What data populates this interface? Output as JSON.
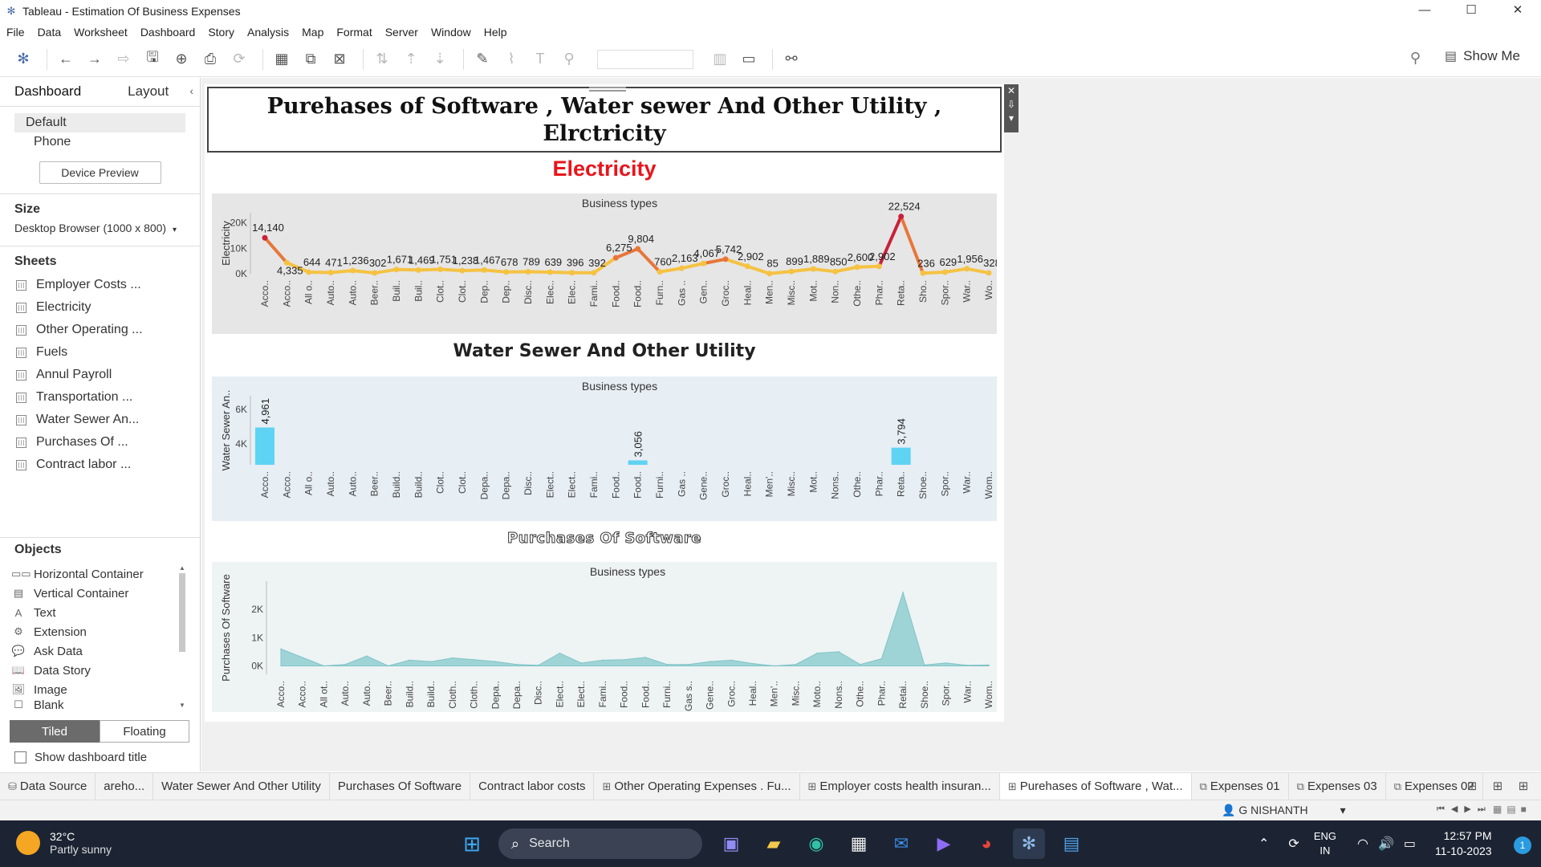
{
  "window": {
    "title": "Tableau - Estimation Of Business Expenses",
    "minimize": "—",
    "maximize": "☐",
    "close": "✕"
  },
  "menu": [
    "File",
    "Data",
    "Worksheet",
    "Dashboard",
    "Story",
    "Analysis",
    "Map",
    "Format",
    "Server",
    "Window",
    "Help"
  ],
  "toolbar": {
    "show_me": "Show Me"
  },
  "left_pane": {
    "tabs": [
      "Dashboard",
      "Layout"
    ],
    "collapse_glyph": "‹",
    "device_items": [
      "Default",
      "Phone"
    ],
    "device_preview": "Device Preview",
    "size_header": "Size",
    "size_value": "Desktop Browser (1000 x 800)",
    "sheets_header": "Sheets",
    "sheets": [
      "Employer Costs ...",
      "Electricity",
      "Other Operating ...",
      "Fuels",
      "Annul Payroll",
      "Transportation ...",
      "Water Sewer An...",
      "Purchases Of ...",
      "Contract labor ..."
    ],
    "objects_header": "Objects",
    "objects": [
      {
        "label": "Horizontal Container",
        "icon": "▭▭"
      },
      {
        "label": "Vertical Container",
        "icon": "▤"
      },
      {
        "label": "Text",
        "icon": "A"
      },
      {
        "label": "Extension",
        "icon": "⚙"
      },
      {
        "label": "Ask Data",
        "icon": "💬"
      },
      {
        "label": "Data Story",
        "icon": "📖"
      },
      {
        "label": "Image",
        "icon": "🖼"
      },
      {
        "label": "Blank",
        "icon": "☐"
      }
    ],
    "tiled": "Tiled",
    "floating": "Floating",
    "show_title": "Show dashboard title"
  },
  "dashboard": {
    "title": "Purehases of Software , Water sewer And Other Utility , Elrctricity",
    "title_tools": [
      "✕",
      "⇩",
      "▾"
    ]
  },
  "chart_data": [
    {
      "type": "line",
      "title": "Electricity",
      "subtitle": "Business types",
      "ylabel": "Electricity",
      "ylim": [
        0,
        24000
      ],
      "yticks": [
        "0K",
        "10K",
        "20K"
      ],
      "color_low": "#f5c242",
      "color_high": "#c8213a",
      "categories": [
        "Acco..",
        "Acco..",
        "All o..",
        "Auto..",
        "Auto..",
        "Beer..",
        "Buil..",
        "Buil..",
        "Clot..",
        "Clot..",
        "Dep..",
        "Dep..",
        "Disc..",
        "Elec..",
        "Elec..",
        "Fami..",
        "Food..",
        "Food..",
        "Furn..",
        "Gas ..",
        "Gen..",
        "Groc..",
        "Heal..",
        "Men..",
        "Misc..",
        "Mot..",
        "Non..",
        "Othe..",
        "Phar..",
        "Reta..",
        "Sho..",
        "Spor..",
        "War..",
        "Wo.."
      ],
      "values": [
        14140,
        4335,
        644,
        471,
        1236,
        302,
        1671,
        1469,
        1751,
        1238,
        1467,
        678,
        789,
        639,
        396,
        392,
        6275,
        9804,
        760,
        2163,
        4067,
        5742,
        2902,
        85,
        899,
        1889,
        850,
        2600,
        2902,
        22524,
        236,
        629,
        1956,
        328
      ],
      "labels": [
        "14,140",
        "4,335",
        "644",
        "471",
        "1,236",
        "302",
        "1,671",
        "1,469",
        "1,751",
        "1,238",
        "1,467",
        "678",
        "789",
        "639",
        "396",
        "392",
        "6,275",
        "9,804",
        "760",
        "2,163",
        "4,067",
        "5,742",
        "2,902",
        "85",
        "899",
        "1,889",
        "850",
        "2,600",
        "2,902",
        "22,524",
        "236",
        "629",
        "1,956",
        "328"
      ]
    },
    {
      "type": "bar",
      "title": "Water Sewer And Other Utility",
      "subtitle": "Business types",
      "ylabel": "Water Sewer An..",
      "ylim": [
        2800,
        6800
      ],
      "yticks": [
        "4K",
        "6K"
      ],
      "color": "#5fd3f3",
      "categories": [
        "Acco..",
        "Acco..",
        "All o..",
        "Auto..",
        "Auto..",
        "Beer..",
        "Build..",
        "Build..",
        "Clot..",
        "Clot..",
        "Depa..",
        "Depa..",
        "Disc..",
        "Elect..",
        "Elect..",
        "Fami..",
        "Food..",
        "Food..",
        "Furni..",
        "Gas ..",
        "Gene..",
        "Groc..",
        "Heal..",
        "Men'..",
        "Misc..",
        "Mot..",
        "Nons..",
        "Othe..",
        "Phar..",
        "Reta..",
        "Shoe..",
        "Spor..",
        "War..",
        "Wom.."
      ],
      "values": [
        4961,
        null,
        null,
        null,
        null,
        null,
        null,
        null,
        null,
        null,
        null,
        null,
        null,
        null,
        null,
        null,
        null,
        3056,
        null,
        null,
        null,
        null,
        null,
        null,
        null,
        null,
        null,
        null,
        null,
        3794,
        null,
        null,
        null,
        null
      ],
      "labels": {
        "0": "4,961",
        "17": "3,056",
        "29": "3,794"
      }
    },
    {
      "type": "area",
      "title": "Purchases Of Software",
      "subtitle": "Business types",
      "ylabel": "Purchases Of Software",
      "ylim": [
        -300,
        3000
      ],
      "yticks": [
        "0K",
        "1K",
        "2K"
      ],
      "color": "#9fd4d6",
      "categories": [
        "Acco..",
        "Acco..",
        "All ot..",
        "Auto..",
        "Auto..",
        "Beer..",
        "Build..",
        "Build..",
        "Cloth..",
        "Cloth..",
        "Depa..",
        "Depa..",
        "Disc..",
        "Elect..",
        "Elect..",
        "Fami..",
        "Food..",
        "Food..",
        "Furni..",
        "Gas s..",
        "Gene..",
        "Groc..",
        "Heal..",
        "Men'..",
        "Misc..",
        "Moto..",
        "Nons..",
        "Othe..",
        "Phar..",
        "Retai..",
        "Shoe..",
        "Spor..",
        "War..",
        "Wom.."
      ],
      "values": [
        600,
        300,
        0,
        50,
        350,
        0,
        200,
        150,
        280,
        220,
        150,
        50,
        20,
        450,
        100,
        200,
        220,
        300,
        50,
        50,
        150,
        200,
        80,
        0,
        50,
        450,
        500,
        50,
        250,
        2600,
        30,
        100,
        20,
        30
      ]
    }
  ],
  "sheet_tabs": [
    {
      "label": "Data Source",
      "icon": "⛁"
    },
    {
      "label": "areho...",
      "icon": ""
    },
    {
      "label": "Water Sewer And Other Utility",
      "icon": ""
    },
    {
      "label": "Purchases Of Software",
      "icon": ""
    },
    {
      "label": "Contract labor costs",
      "icon": ""
    },
    {
      "label": "Other Operating Expenses . Fu...",
      "icon": "⊞"
    },
    {
      "label": "Employer costs health insuran...",
      "icon": "⊞"
    },
    {
      "label": "Purehases of Software , Wat...",
      "icon": "⊞"
    },
    {
      "label": "Expenses 01",
      "icon": "⧉"
    },
    {
      "label": "Expenses 03",
      "icon": "⧉"
    },
    {
      "label": "Expenses 02",
      "icon": "⧉"
    }
  ],
  "status": {
    "user": "G NISHANTH"
  },
  "taskbar": {
    "temp": "32°C",
    "condition": "Partly sunny",
    "search": "Search",
    "lang1": "ENG",
    "lang2": "IN",
    "time": "12:57 PM",
    "date": "11-10-2023",
    "notifications": "1"
  }
}
